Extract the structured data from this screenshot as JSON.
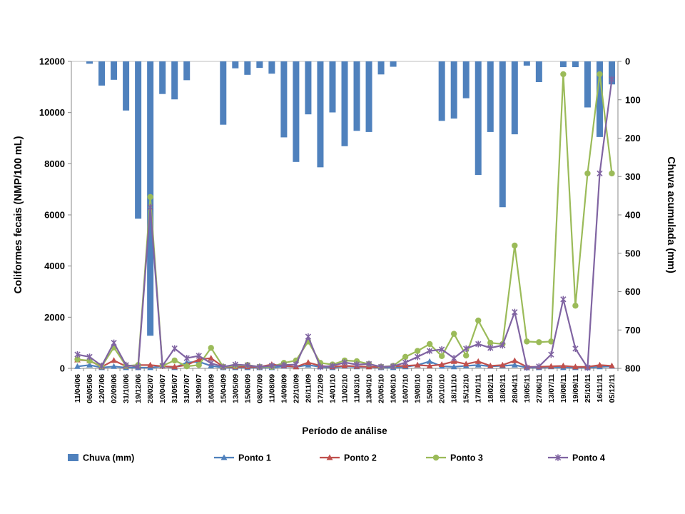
{
  "chart_data": {
    "type": "combo-bar-line",
    "title": "",
    "xlabel": "Período de análise",
    "ylabel_left": "Coliformes fecais (NMP/100 mL)",
    "ylabel_right": "Chuva acumulada (mm)",
    "left_axis": {
      "min": 0,
      "max": 12000,
      "step": 2000,
      "ticks": [
        0,
        2000,
        4000,
        6000,
        8000,
        10000,
        12000
      ]
    },
    "right_axis": {
      "min": 0,
      "max": 800,
      "step": 100,
      "inverted": true,
      "ticks": [
        0,
        100,
        200,
        300,
        400,
        500,
        600,
        700,
        800
      ]
    },
    "grid": "off",
    "legend_position": "bottom",
    "categories": [
      "11/04/06",
      "06/05/06",
      "12/07/06",
      "02/09/06",
      "31/10/06",
      "19/12/06",
      "28/02/07",
      "10/04/07",
      "31/05/07",
      "31/07/07",
      "13/09/07",
      "16/03/09",
      "15/04/09",
      "13/05/09",
      "15/06/09",
      "08/07/09",
      "11/08/09",
      "14/09/09",
      "22/10/09",
      "26/11/09",
      "17/12/09",
      "14/01/10",
      "11/02/10",
      "11/03/10",
      "13/04/10",
      "20/05/10",
      "16/06/10",
      "16/07/10",
      "19/08/10",
      "15/09/10",
      "20/10/10",
      "18/11/10",
      "15/12/10",
      "17/01/11",
      "18/02/11",
      "18/03/11",
      "28/04/11",
      "19/05/11",
      "27/06/11",
      "13/07/11",
      "19/08/11",
      "19/09/11",
      "25/10/11",
      "16/11/11",
      "05/12/11"
    ],
    "bar_series": {
      "name": "Chuva (mm)",
      "axis": "right",
      "color": "#4F81BD",
      "values": [
        0,
        6,
        63,
        48,
        128,
        410,
        715,
        85,
        99,
        49,
        0,
        0,
        165,
        18,
        35,
        17,
        32,
        198,
        262,
        138,
        276,
        133,
        221,
        181,
        184,
        34,
        14,
        0,
        0,
        0,
        155,
        149,
        96,
        296,
        184,
        380,
        190,
        11,
        54,
        0,
        15,
        15,
        120,
        197,
        60
      ]
    },
    "line_series": [
      {
        "name": "Ponto 1",
        "axis": "left",
        "color": "#4F81BD",
        "marker": "triangle",
        "values": [
          75,
          130,
          30,
          75,
          30,
          30,
          30,
          80,
          30,
          230,
          260,
          100,
          30,
          30,
          30,
          30,
          30,
          80,
          60,
          130,
          60,
          30,
          80,
          60,
          60,
          30,
          30,
          60,
          130,
          270,
          80,
          60,
          100,
          130,
          80,
          100,
          130,
          30,
          30,
          60,
          30,
          30,
          30,
          60,
          80
        ]
      },
      {
        "name": "Ponto 2",
        "axis": "left",
        "color": "#C0504D",
        "marker": "triangle",
        "values": [
          330,
          300,
          60,
          310,
          80,
          130,
          130,
          80,
          60,
          130,
          350,
          400,
          60,
          60,
          60,
          60,
          150,
          100,
          60,
          230,
          100,
          60,
          100,
          80,
          60,
          60,
          80,
          100,
          130,
          100,
          150,
          270,
          170,
          270,
          100,
          130,
          300,
          60,
          60,
          80,
          100,
          60,
          60,
          130,
          100
        ]
      },
      {
        "name": "Ponto 3",
        "axis": "left",
        "color": "#9BBB59",
        "marker": "circle",
        "values": [
          350,
          300,
          80,
          820,
          100,
          130,
          6700,
          100,
          310,
          80,
          130,
          800,
          60,
          100,
          130,
          60,
          60,
          215,
          310,
          1050,
          215,
          150,
          310,
          280,
          170,
          60,
          100,
          450,
          680,
          950,
          480,
          1350,
          500,
          1870,
          1000,
          950,
          4800,
          1050,
          1025,
          1050,
          11500,
          2450,
          7620,
          11500,
          7620
        ]
      },
      {
        "name": "Ponto 4",
        "axis": "left",
        "color": "#8064A2",
        "marker": "asterisk",
        "values": [
          540,
          450,
          100,
          1000,
          130,
          60,
          6300,
          100,
          780,
          400,
          490,
          200,
          60,
          150,
          120,
          60,
          100,
          130,
          150,
          1240,
          60,
          100,
          230,
          150,
          170,
          60,
          80,
          230,
          450,
          680,
          740,
          400,
          770,
          950,
          800,
          900,
          2200,
          30,
          75,
          540,
          2700,
          770,
          30,
          7620,
          11300
        ]
      }
    ],
    "legend_items": [
      "Chuva (mm)",
      "Ponto 1",
      "Ponto 2",
      "Ponto 3",
      "Ponto 4"
    ]
  }
}
